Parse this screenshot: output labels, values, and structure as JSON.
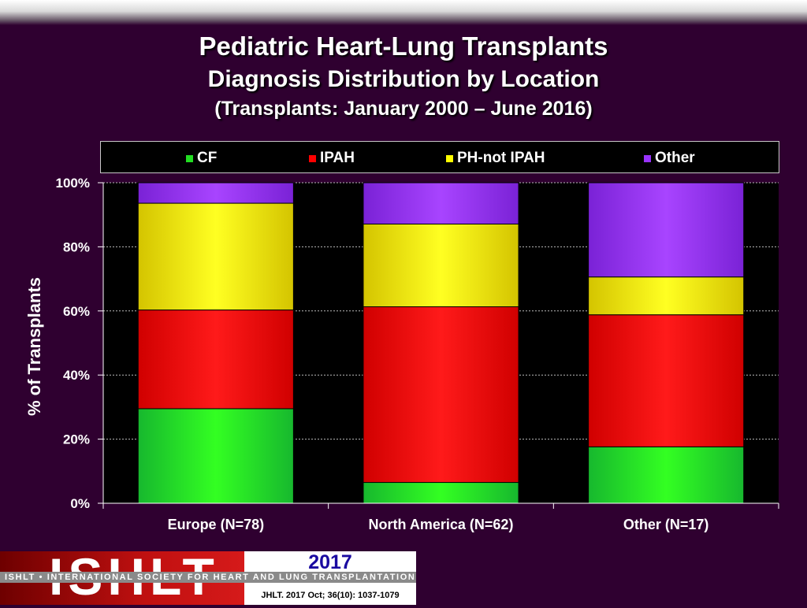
{
  "titles": {
    "line1": "Pediatric Heart-Lung Transplants",
    "line2": "Diagnosis Distribution by Location",
    "line3": "(Transplants: January 2000 – June 2016)"
  },
  "legend": [
    {
      "label": "CF",
      "color": "#22dd22",
      "icon": "green-square-icon"
    },
    {
      "label": "IPAH",
      "color": "#ff0000",
      "icon": "red-square-icon"
    },
    {
      "label": "PH-not IPAH",
      "color": "#ffff00",
      "icon": "yellow-square-icon"
    },
    {
      "label": "Other",
      "color": "#9933ff",
      "icon": "purple-square-icon"
    }
  ],
  "footer": {
    "logo_text": "ISHLT",
    "society_text": "ISHLT • INTERNATIONAL SOCIETY FOR HEART AND LUNG TRANSPLANTATION",
    "year": "2017",
    "citation": "JHLT. 2017 Oct; 36(10): 1037-1079"
  },
  "chart_data": {
    "type": "bar",
    "stacked": true,
    "ylabel": "% of Transplants",
    "ylim": [
      0,
      100
    ],
    "yticks": [
      "0%",
      "20%",
      "40%",
      "60%",
      "80%",
      "100%"
    ],
    "grid": true,
    "legend_position": "top",
    "categories": [
      "Europe (N=78)",
      "North America (N=62)",
      "Other (N=17)"
    ],
    "series": [
      {
        "name": "CF",
        "color": "#22dd22",
        "values": [
          29.5,
          6.5,
          17.6
        ]
      },
      {
        "name": "IPAH",
        "color": "#ff0000",
        "values": [
          30.8,
          54.8,
          41.2
        ]
      },
      {
        "name": "PH-not IPAH",
        "color": "#ffff00",
        "values": [
          33.3,
          25.8,
          11.8
        ]
      },
      {
        "name": "Other",
        "color": "#9933ff",
        "values": [
          6.4,
          12.9,
          29.4
        ]
      }
    ]
  }
}
